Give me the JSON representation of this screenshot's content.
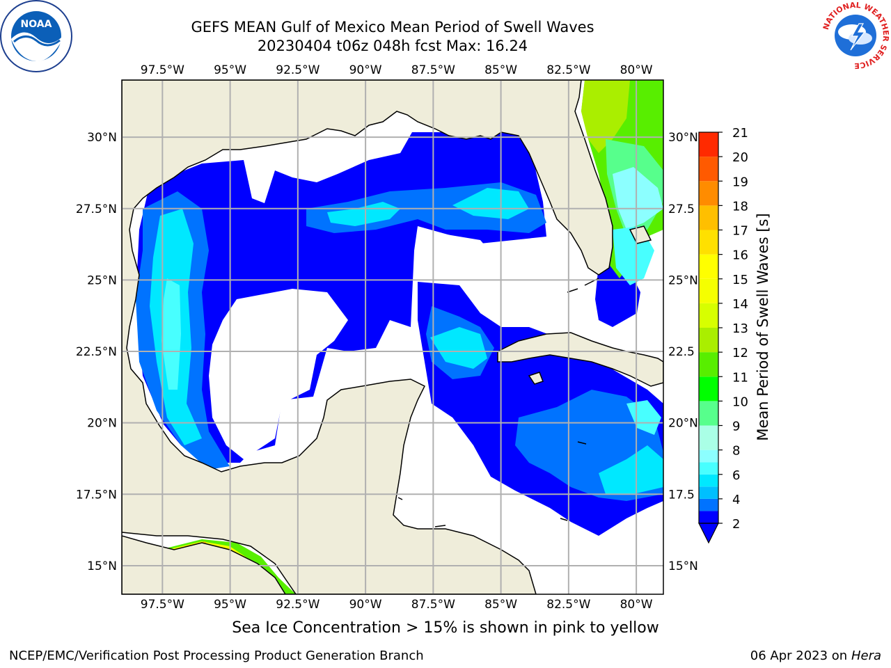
{
  "title": {
    "line1": "GEFS MEAN Gulf of Mexico Mean Period of Swell Waves",
    "line2": "20230404 t06z 048h fcst   Max: 16.24"
  },
  "map": {
    "lon_min": -99.0,
    "lon_max": -79.0,
    "lat_min": 14.0,
    "lat_max": 32.0,
    "lon_ticks": [
      -97.5,
      -95,
      -92.5,
      -90,
      -87.5,
      -85,
      -82.5,
      -80
    ],
    "lon_tick_labels": [
      "97.5°W",
      "95°W",
      "92.5°W",
      "90°W",
      "87.5°W",
      "85°W",
      "82.5°W",
      "80°W"
    ],
    "lat_ticks": [
      30,
      27.5,
      25,
      22.5,
      20,
      17.5,
      15
    ],
    "lat_tick_labels_left": [
      "30°N",
      "27.5°N",
      "25°N",
      "22.5°N",
      "20°N",
      "17.5°N",
      "15°N"
    ],
    "lat_tick_labels_right": [
      "30°N",
      "27.5",
      "25°N",
      "22.5",
      "20°N",
      "17.5",
      "15°N"
    ],
    "grid": true,
    "land_color": "#efedda",
    "water_color": "#ffffff",
    "coast_color": "#000000"
  },
  "chart_data": {
    "type": "heatmap",
    "variable": "Mean Period of Swell Waves",
    "units": "s",
    "max_value": 16.24,
    "colorbar": {
      "label": "Mean Period of Swell Waves [s]",
      "levels": [
        2,
        3,
        4,
        5,
        6,
        7,
        8,
        9,
        10,
        11,
        12,
        13,
        14,
        15,
        16,
        17,
        18,
        19,
        20,
        21
      ],
      "tick_labels": [
        "2",
        "4",
        "6",
        "8",
        "9",
        "10",
        "11",
        "12",
        "13",
        "14",
        "15",
        "16",
        "17",
        "18",
        "19",
        "20",
        "21"
      ],
      "colors": [
        "#0000ff",
        "#0073ff",
        "#00bfff",
        "#00e8ff",
        "#48ffff",
        "#8cffff",
        "#aaffe6",
        "#57ff8c",
        "#00ff00",
        "#58ee00",
        "#aaee00",
        "#d7ff00",
        "#f5ff00",
        "#ffff00",
        "#ffe000",
        "#ffbf00",
        "#ff8c00",
        "#ff5a00",
        "#ff2a00",
        "#ff0000"
      ],
      "extend": "min",
      "extend_color": "#0000ff"
    }
  },
  "note": "Sea Ice Concentration > 15% is shown in pink to yellow",
  "footer": {
    "left": "NCEP/EMC/Verification Post Processing Product Generation Branch",
    "right_date": "06 Apr 2023 on",
    "right_host": "Hera"
  },
  "logos": {
    "noaa_text": "NOAA",
    "nws_ring_text": "NATIONAL WEATHER SERVICE"
  }
}
